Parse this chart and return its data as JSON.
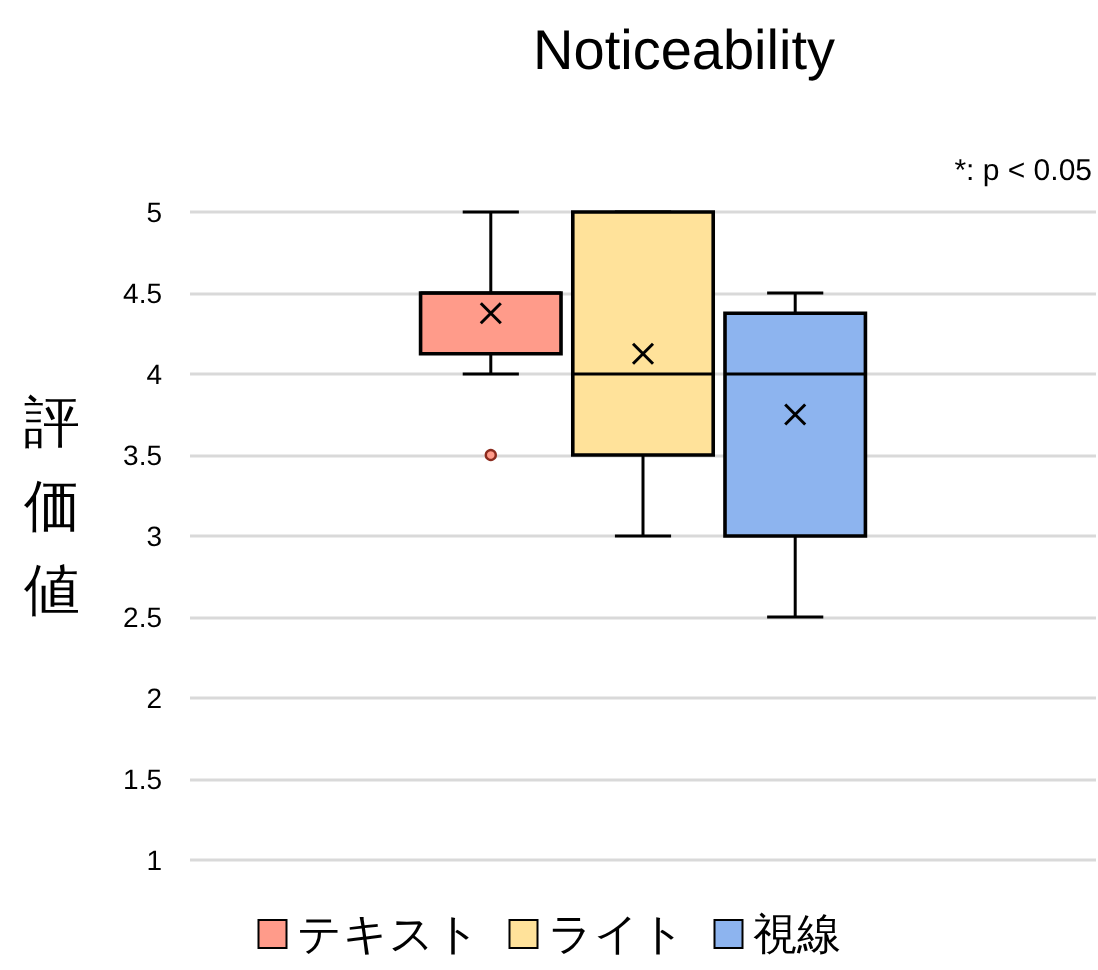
{
  "chart_data": {
    "type": "box",
    "title": "Noticeability",
    "ylabel": "評価値",
    "annotations": [
      "*: p < 0.05"
    ],
    "categories": [
      null
    ],
    "series": [
      {
        "name": "テキスト",
        "color": "#ff9b8a",
        "boxes": [
          {
            "low": 4,
            "q1": 4.125,
            "median": 4.5,
            "q3": 4.5,
            "high": 5,
            "mean": 4.375,
            "outliers": [
              3.5
            ]
          }
        ]
      },
      {
        "name": "ライト",
        "color": "#ffe29a",
        "boxes": [
          {
            "low": 3,
            "q1": 3.5,
            "median": 4,
            "q3": 5,
            "high": 5,
            "mean": 4.125
          }
        ]
      },
      {
        "name": "視線",
        "color": "#8db4ef",
        "boxes": [
          {
            "low": 2.5,
            "q1": 3,
            "median": 4,
            "q3": 4.375,
            "high": 4.5,
            "mean": 3.75
          }
        ]
      }
    ],
    "ylim": [
      1,
      5
    ],
    "yticks": [
      1,
      1.5,
      2,
      2.5,
      3,
      3.5,
      4,
      4.5,
      5
    ],
    "grid": "y",
    "legend": "bottom",
    "marker": "cross"
  }
}
